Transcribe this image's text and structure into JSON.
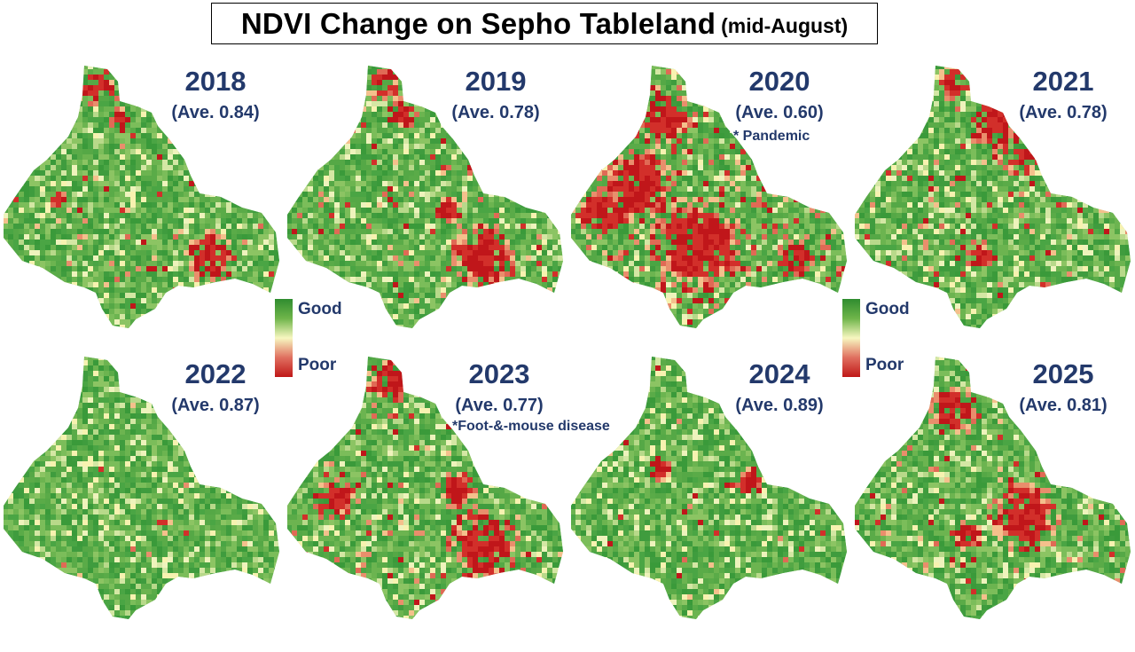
{
  "title": {
    "main": "NDVI Change on Sepho Tableland",
    "sub": "(mid-August)"
  },
  "legend": {
    "good_label": "Good",
    "poor_label": "Poor",
    "colors": [
      "#2f8c2f",
      "#6fb54a",
      "#f7f7c0",
      "#e07060",
      "#c01818"
    ]
  },
  "panels": [
    {
      "year": "2018",
      "ave_text": "(Ave. 0.84)",
      "ave_value": 0.84,
      "note": ""
    },
    {
      "year": "2019",
      "ave_text": "(Ave. 0.78)",
      "ave_value": 0.78,
      "note": ""
    },
    {
      "year": "2020",
      "ave_text": "(Ave. 0.60)",
      "ave_value": 0.6,
      "note": "* Pandemic"
    },
    {
      "year": "2021",
      "ave_text": "(Ave. 0.78)",
      "ave_value": 0.78,
      "note": ""
    },
    {
      "year": "2022",
      "ave_text": "(Ave. 0.87)",
      "ave_value": 0.87,
      "note": ""
    },
    {
      "year": "2023",
      "ave_text": "(Ave. 0.77)",
      "ave_value": 0.77,
      "note": "*Foot-&-mouse disease"
    },
    {
      "year": "2024",
      "ave_text": "(Ave. 0.89)",
      "ave_value": 0.89,
      "note": ""
    },
    {
      "year": "2025",
      "ave_text": "(Ave. 0.81)",
      "ave_value": 0.81,
      "note": ""
    }
  ]
}
